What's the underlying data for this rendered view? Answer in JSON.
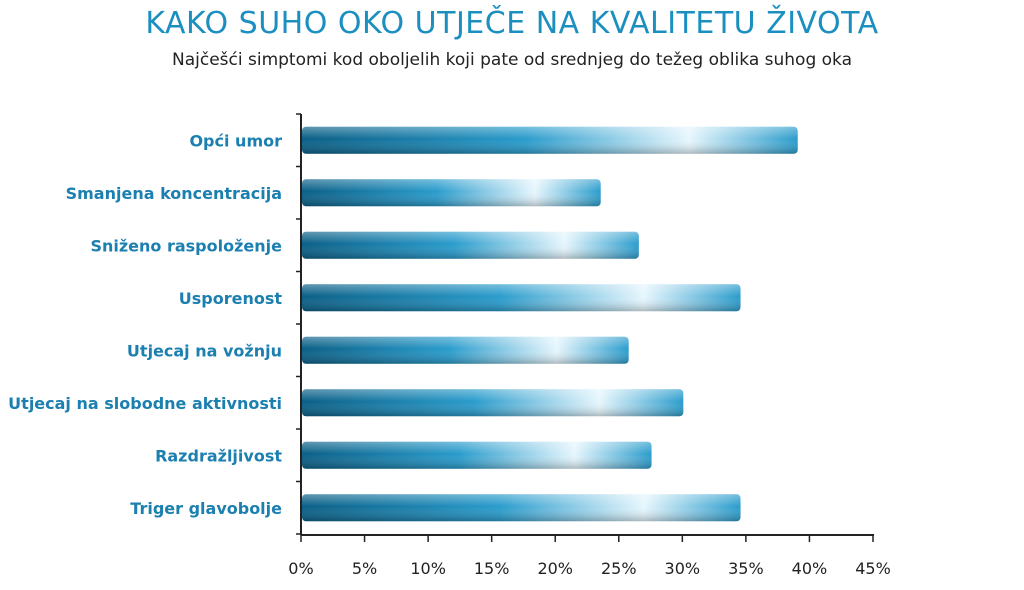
{
  "colors": {
    "title": "#1b8fbf",
    "label": "#1b7fb0",
    "bar_dark": "#0b5f86",
    "bar_mid": "#2a9ccc",
    "bar_light": "#e6f6fd",
    "axis": "#222222"
  },
  "chart_data": {
    "type": "bar",
    "orientation": "horizontal",
    "title": "KAKO SUHO OKO UTJEČE NA KVALITETU ŽIVOTA",
    "subtitle": "Najčešći simptomi kod oboljelih koji pate od srednjeg do težeg oblika suhog oka",
    "categories": [
      "Opći umor",
      "Smanjena koncentracija",
      "Sniženo raspoloženje",
      "Usporenost",
      "Utjecaj na vožnju",
      "Utjecaj na slobodne aktivnosti",
      "Razdražljivost",
      "Triger glavobolje"
    ],
    "values": [
      39,
      23.5,
      26.5,
      34.5,
      25.7,
      30,
      27.5,
      34.5
    ],
    "xlim": [
      0,
      45
    ],
    "xticks": [
      0,
      5,
      10,
      15,
      20,
      25,
      30,
      35,
      40,
      45
    ],
    "tick_labels": [
      "0%",
      "5%",
      "10%",
      "15%",
      "20%",
      "25%",
      "30%",
      "35%",
      "40%",
      "45%"
    ],
    "grid": false,
    "legend": "none"
  }
}
